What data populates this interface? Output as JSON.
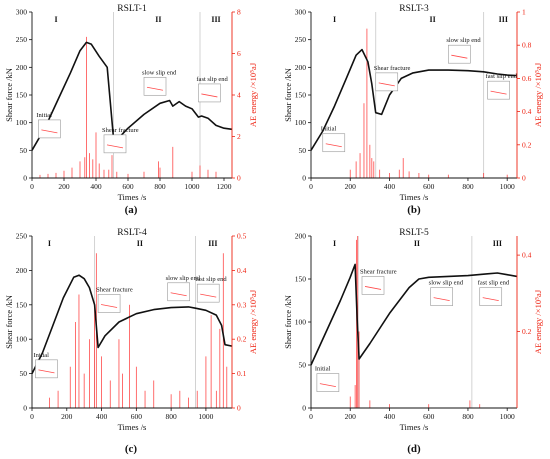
{
  "figure": {
    "panels": [
      {
        "id": "a",
        "caption": "(a)"
      },
      {
        "id": "b",
        "caption": "(b)"
      },
      {
        "id": "c",
        "caption": "(c)"
      },
      {
        "id": "d",
        "caption": "(d)"
      }
    ]
  },
  "chart_data": [
    {
      "type": "line",
      "title": "RSLT-1",
      "caption": "(a)",
      "xlabel": "Times /s",
      "ylabel": "Shear force /kN",
      "y2label": "AE energy /×10⁵aJ",
      "xlim": [
        0,
        1250
      ],
      "ylim": [
        0,
        300
      ],
      "y2lim": [
        0,
        8
      ],
      "xticks": [
        0,
        200,
        400,
        600,
        800,
        1000,
        1200
      ],
      "yticks": [
        0,
        50,
        100,
        150,
        200,
        250,
        300
      ],
      "y2ticks": [
        0,
        2,
        4,
        6,
        8
      ],
      "phase_boundaries": [
        510,
        1050
      ],
      "phase_labels": [
        {
          "x": 150,
          "text": "I"
        },
        {
          "x": 790,
          "text": "II"
        },
        {
          "x": 1150,
          "text": "III"
        }
      ],
      "annotations": [
        {
          "text": "Initial",
          "x": 40,
          "y": 105
        },
        {
          "text": "Shear fracture",
          "x": 450,
          "y": 78
        },
        {
          "text": "slow slip end",
          "x": 700,
          "y": 182
        },
        {
          "text": "fast slip end",
          "x": 1040,
          "y": 170
        }
      ],
      "series": [
        {
          "axis": "left",
          "style": "line",
          "x": [
            0,
            80,
            160,
            240,
            300,
            340,
            370,
            420,
            470,
            510,
            540,
            600,
            700,
            800,
            860,
            880,
            920,
            960,
            1000,
            1040,
            1060,
            1100,
            1150,
            1200,
            1250
          ],
          "y": [
            50,
            90,
            140,
            190,
            230,
            245,
            242,
            220,
            200,
            70,
            72,
            90,
            115,
            135,
            140,
            130,
            138,
            130,
            125,
            110,
            112,
            108,
            95,
            90,
            88
          ]
        },
        {
          "axis": "right",
          "style": "spikes",
          "x": [
            50,
            100,
            150,
            200,
            250,
            300,
            330,
            340,
            360,
            380,
            400,
            420,
            450,
            480,
            500,
            530,
            600,
            700,
            790,
            800,
            880,
            1000,
            1050,
            1100,
            1150
          ],
          "y": [
            0.15,
            0.2,
            0.25,
            0.35,
            0.5,
            0.8,
            1.0,
            6.8,
            1.2,
            0.9,
            2.2,
            0.7,
            0.4,
            0.4,
            1.1,
            0.3,
            0.2,
            0.3,
            0.8,
            0.5,
            1.5,
            0.3,
            0.6,
            0.4,
            0.3
          ]
        }
      ]
    },
    {
      "type": "line",
      "title": "RSLT-3",
      "caption": "(b)",
      "xlabel": "Times /s",
      "ylabel": "Shear force /kN",
      "y2label": "AE energy /×10⁵aJ",
      "xlim": [
        0,
        1050
      ],
      "ylim": [
        0,
        300
      ],
      "y2lim": [
        0,
        1.0
      ],
      "xticks": [
        0,
        200,
        400,
        600,
        800,
        1000
      ],
      "yticks": [
        0,
        50,
        100,
        150,
        200,
        250,
        300
      ],
      "y2ticks": [
        0,
        0.2,
        0.4,
        0.6,
        0.8,
        1.0
      ],
      "phase_boundaries": [
        330,
        880
      ],
      "phase_labels": [
        {
          "x": 120,
          "text": "I"
        },
        {
          "x": 620,
          "text": "II"
        },
        {
          "x": 980,
          "text": "III"
        }
      ],
      "annotations": [
        {
          "text": "Initial",
          "x": 60,
          "y": 80
        },
        {
          "text": "Shear fracture",
          "x": 330,
          "y": 190
        },
        {
          "text": "slow slip end",
          "x": 700,
          "y": 240
        },
        {
          "text": "fast slip end",
          "x": 900,
          "y": 175
        }
      ],
      "series": [
        {
          "axis": "left",
          "style": "line",
          "x": [
            0,
            60,
            120,
            180,
            230,
            260,
            290,
            310,
            330,
            360,
            400,
            460,
            520,
            600,
            700,
            800,
            880,
            950,
            1000,
            1050
          ],
          "y": [
            50,
            85,
            130,
            180,
            222,
            232,
            210,
            170,
            118,
            115,
            150,
            180,
            190,
            195,
            195,
            194,
            192,
            188,
            186,
            185
          ]
        },
        {
          "axis": "right",
          "style": "spikes",
          "x": [
            200,
            230,
            250,
            270,
            285,
            300,
            310,
            320,
            350,
            400,
            450,
            470,
            500,
            550,
            600,
            700,
            880,
            1000
          ],
          "y": [
            0.05,
            0.1,
            0.15,
            0.45,
            0.9,
            0.2,
            0.12,
            0.1,
            0.05,
            0.03,
            0.05,
            0.12,
            0.04,
            0.03,
            0.02,
            0.02,
            0.03,
            0.02
          ]
        }
      ]
    },
    {
      "type": "line",
      "title": "RSLT-4",
      "caption": "(c)",
      "xlabel": "Times /s",
      "ylabel": "Shear force /kN",
      "y2label": "AE energy /×10⁵aJ",
      "xlim": [
        0,
        1150
      ],
      "ylim": [
        0,
        250
      ],
      "y2lim": [
        0,
        0.5
      ],
      "xticks": [
        0,
        200,
        400,
        600,
        800,
        1000
      ],
      "yticks": [
        0,
        50,
        100,
        150,
        200,
        250
      ],
      "y2ticks": [
        0,
        0.1,
        0.2,
        0.3,
        0.4,
        0.5
      ],
      "phase_boundaries": [
        360,
        940
      ],
      "phase_labels": [
        {
          "x": 100,
          "text": "I"
        },
        {
          "x": 620,
          "text": "II"
        },
        {
          "x": 1040,
          "text": "III"
        }
      ],
      "annotations": [
        {
          "text": "Initial",
          "x": 20,
          "y": 70
        },
        {
          "text": "Shear fracture",
          "x": 380,
          "y": 165
        },
        {
          "text": "slow slip end",
          "x": 780,
          "y": 182
        },
        {
          "text": "fast slip end",
          "x": 950,
          "y": 180
        }
      ],
      "series": [
        {
          "axis": "left",
          "style": "line",
          "x": [
            0,
            60,
            120,
            180,
            240,
            270,
            300,
            330,
            360,
            380,
            420,
            500,
            600,
            700,
            800,
            900,
            940,
            1000,
            1060,
            1090,
            1110,
            1150
          ],
          "y": [
            50,
            80,
            120,
            160,
            190,
            193,
            188,
            175,
            150,
            88,
            105,
            125,
            137,
            143,
            146,
            147,
            145,
            142,
            135,
            120,
            92,
            90
          ]
        },
        {
          "axis": "right",
          "style": "spikes",
          "x": [
            100,
            150,
            220,
            250,
            270,
            300,
            330,
            360,
            370,
            400,
            450,
            500,
            520,
            560,
            600,
            650,
            700,
            800,
            850,
            900,
            950,
            1000,
            1030,
            1060,
            1080,
            1100,
            1120
          ],
          "y": [
            0.03,
            0.05,
            0.12,
            0.25,
            0.33,
            0.1,
            0.2,
            0.3,
            0.45,
            0.15,
            0.08,
            0.2,
            0.1,
            0.3,
            0.12,
            0.05,
            0.08,
            0.04,
            0.05,
            0.03,
            0.05,
            0.15,
            0.27,
            0.05,
            0.23,
            0.45,
            0.12
          ]
        }
      ]
    },
    {
      "type": "line",
      "title": "RSLT-5",
      "caption": "(d)",
      "xlabel": "Times /s",
      "ylabel": "Shear force /kN",
      "y2label": "AE energy /×10⁵aJ",
      "xlim": [
        0,
        1050
      ],
      "ylim": [
        0,
        200
      ],
      "y2lim": [
        0,
        0.45
      ],
      "xticks": [
        0,
        200,
        400,
        600,
        800,
        1000
      ],
      "yticks": [
        0,
        50,
        100,
        150,
        200
      ],
      "y2ticks": [
        0.2,
        0.4
      ],
      "phase_boundaries": [
        240,
        820
      ],
      "phase_labels": [
        {
          "x": 120,
          "text": "I"
        },
        {
          "x": 540,
          "text": "II"
        },
        {
          "x": 950,
          "text": "III"
        }
      ],
      "annotations": [
        {
          "text": "Initial",
          "x": 30,
          "y": 40
        },
        {
          "text": "Shear fracture",
          "x": 260,
          "y": 153
        },
        {
          "text": "slow slip end",
          "x": 610,
          "y": 140
        },
        {
          "text": "fast slip end",
          "x": 860,
          "y": 140
        }
      ],
      "series": [
        {
          "axis": "left",
          "style": "line",
          "x": [
            0,
            50,
            100,
            150,
            200,
            225,
            235,
            245,
            300,
            400,
            500,
            550,
            600,
            700,
            800,
            900,
            950,
            1000,
            1050
          ],
          "y": [
            50,
            75,
            100,
            125,
            152,
            167,
            105,
            57,
            75,
            110,
            140,
            150,
            152,
            153,
            154,
            156,
            157,
            155,
            153
          ]
        },
        {
          "axis": "right",
          "style": "spikes",
          "x": [
            200,
            225,
            232,
            238,
            245,
            300,
            400,
            600,
            810,
            860
          ],
          "y": [
            0.03,
            0.06,
            0.44,
            0.45,
            0.2,
            0.02,
            0.01,
            0.01,
            0.02,
            0.01
          ]
        }
      ]
    }
  ]
}
